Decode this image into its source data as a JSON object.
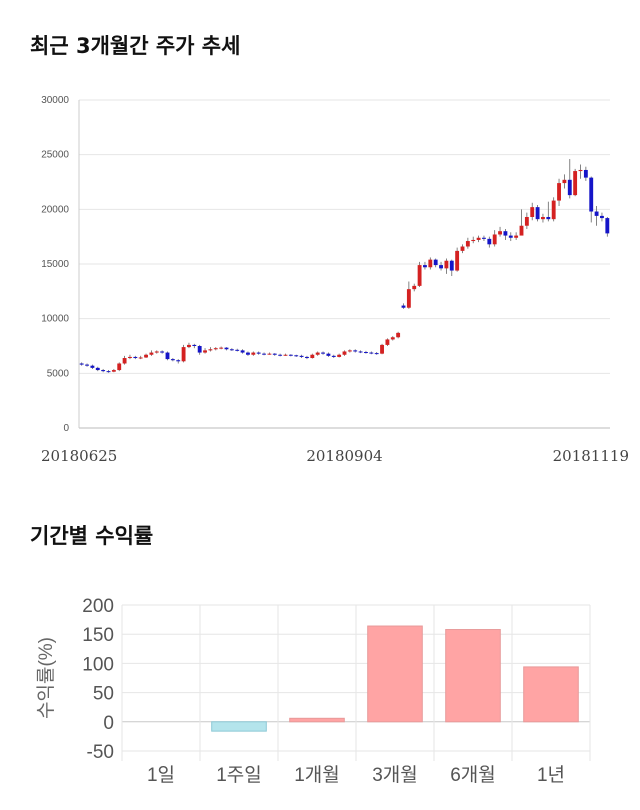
{
  "sections": {
    "price_title": "최근 3개월간 주가 추세",
    "return_title": "기간별 수익률"
  },
  "chart_data": [
    {
      "type": "candlestick",
      "title": "최근 3개월간 주가 추세",
      "ylim": [
        0,
        30000
      ],
      "y_ticks": [
        0,
        5000,
        10000,
        15000,
        20000,
        25000,
        30000
      ],
      "x_tick_labels": [
        "20180625",
        "20180904",
        "20181119"
      ],
      "x_tick_index": [
        0,
        49,
        99
      ],
      "grid": true,
      "colors": {
        "up": "#d42121",
        "down": "#1515c8",
        "wick": "#666666"
      },
      "candles": [
        [
          5900,
          5800,
          6000,
          5700
        ],
        [
          5800,
          5700,
          5900,
          5600
        ],
        [
          5700,
          5500,
          5800,
          5400
        ],
        [
          5500,
          5300,
          5600,
          5200
        ],
        [
          5300,
          5200,
          5400,
          5100
        ],
        [
          5200,
          5150,
          5300,
          5050
        ],
        [
          5150,
          5300,
          5400,
          5100
        ],
        [
          5300,
          5900,
          6000,
          5200
        ],
        [
          5900,
          6400,
          6600,
          5800
        ],
        [
          6400,
          6500,
          6700,
          6300
        ],
        [
          6500,
          6400,
          6600,
          6300
        ],
        [
          6400,
          6450,
          6600,
          6300
        ],
        [
          6450,
          6700,
          6800,
          6400
        ],
        [
          6700,
          6900,
          7100,
          6600
        ],
        [
          6900,
          7000,
          7100,
          6800
        ],
        [
          7000,
          6900,
          7100,
          6800
        ],
        [
          6900,
          6300,
          7000,
          6200
        ],
        [
          6300,
          6200,
          6400,
          6100
        ],
        [
          6200,
          6100,
          6300,
          5900
        ],
        [
          6100,
          7400,
          7600,
          6000
        ],
        [
          7400,
          7600,
          7800,
          7300
        ],
        [
          7600,
          7500,
          7700,
          7300
        ],
        [
          7500,
          6900,
          7600,
          6700
        ],
        [
          6900,
          7100,
          7300,
          6800
        ],
        [
          7100,
          7200,
          7400,
          7000
        ],
        [
          7200,
          7300,
          7400,
          7100
        ],
        [
          7300,
          7350,
          7450,
          7200
        ],
        [
          7350,
          7200,
          7400,
          7100
        ],
        [
          7200,
          7150,
          7300,
          7050
        ],
        [
          7150,
          7100,
          7250,
          7000
        ],
        [
          7100,
          6900,
          7200,
          6800
        ],
        [
          6900,
          6700,
          7000,
          6600
        ],
        [
          6700,
          6900,
          7000,
          6600
        ],
        [
          6900,
          6800,
          7000,
          6700
        ],
        [
          6800,
          6750,
          6900,
          6650
        ],
        [
          6750,
          6800,
          6900,
          6700
        ],
        [
          6800,
          6700,
          6850,
          6600
        ],
        [
          6700,
          6650,
          6800,
          6550
        ],
        [
          6650,
          6700,
          6800,
          6600
        ],
        [
          6700,
          6650,
          6750,
          6550
        ],
        [
          6650,
          6600,
          6700,
          6500
        ],
        [
          6600,
          6500,
          6700,
          6400
        ],
        [
          6500,
          6400,
          6600,
          6300
        ],
        [
          6400,
          6700,
          6800,
          6350
        ],
        [
          6700,
          6900,
          7000,
          6600
        ],
        [
          6900,
          6800,
          7000,
          6700
        ],
        [
          6800,
          6600,
          6900,
          6500
        ],
        [
          6600,
          6500,
          6700,
          6400
        ],
        [
          6500,
          6700,
          6800,
          6450
        ],
        [
          6700,
          7000,
          7100,
          6600
        ],
        [
          7000,
          7100,
          7200,
          6900
        ],
        [
          7100,
          7000,
          7200,
          6900
        ],
        [
          7000,
          6950,
          7100,
          6850
        ],
        [
          6950,
          6900,
          7050,
          6800
        ],
        [
          6900,
          6850,
          7000,
          6750
        ],
        [
          6850,
          6800,
          6950,
          6700
        ],
        [
          6800,
          7600,
          7700,
          6750
        ],
        [
          7600,
          8100,
          8200,
          7500
        ],
        [
          8100,
          8300,
          8400,
          8000
        ],
        [
          8300,
          8700,
          8800,
          8200
        ],
        [
          11200,
          11000,
          11400,
          10900
        ],
        [
          11000,
          12700,
          13400,
          10900
        ],
        [
          12700,
          13000,
          13200,
          12500
        ],
        [
          13000,
          14900,
          15200,
          12900
        ],
        [
          14900,
          14700,
          15200,
          14500
        ],
        [
          14700,
          15400,
          15600,
          14500
        ],
        [
          15400,
          14900,
          15500,
          14700
        ],
        [
          14900,
          14600,
          15200,
          14400
        ],
        [
          14600,
          15300,
          15500,
          14100
        ],
        [
          15300,
          14400,
          15400,
          13900
        ],
        [
          14400,
          16200,
          16500,
          14300
        ],
        [
          16200,
          16600,
          16800,
          16000
        ],
        [
          16600,
          17100,
          17400,
          16400
        ],
        [
          17100,
          17200,
          17500,
          16900
        ],
        [
          17200,
          17400,
          17600,
          17000
        ],
        [
          17400,
          17300,
          17600,
          17100
        ],
        [
          17300,
          16800,
          17500,
          16500
        ],
        [
          16800,
          17700,
          18100,
          16600
        ],
        [
          17700,
          18000,
          18400,
          17500
        ],
        [
          18000,
          17600,
          18200,
          17200
        ],
        [
          17600,
          17400,
          17900,
          17100
        ],
        [
          17400,
          17600,
          17900,
          17200
        ],
        [
          17600,
          18500,
          20000,
          18300
        ],
        [
          18500,
          19300,
          19700,
          18200
        ],
        [
          19300,
          20200,
          20600,
          19000
        ],
        [
          20200,
          19100,
          20400,
          18900
        ],
        [
          19100,
          19300,
          19600,
          18800
        ],
        [
          19300,
          19100,
          20700,
          18900
        ],
        [
          19100,
          20800,
          21100,
          18900
        ],
        [
          20800,
          22400,
          22800,
          20300
        ],
        [
          22400,
          22700,
          23200,
          21900
        ],
        [
          22700,
          21300,
          24600,
          21000
        ],
        [
          21300,
          23500,
          23700,
          21200
        ],
        [
          23500,
          23600,
          24100,
          22800
        ],
        [
          23600,
          22900,
          23900,
          22600
        ],
        [
          22900,
          19800,
          23000,
          18800
        ],
        [
          19800,
          19400,
          20300,
          18500
        ],
        [
          19400,
          19200,
          19700,
          18900
        ],
        [
          19200,
          17800,
          19300,
          17500
        ]
      ]
    },
    {
      "type": "bar",
      "title": "기간별 수익률",
      "categories": [
        "1일",
        "1주일",
        "1개월",
        "3개월",
        "6개월",
        "1년"
      ],
      "values": [
        0,
        -16,
        6,
        164,
        158,
        94
      ],
      "ylabel": "수익률(%)",
      "ylim": [
        -50,
        200
      ],
      "y_ticks": [
        -50,
        0,
        50,
        100,
        150,
        200
      ],
      "colors": {
        "positive_fill": "#ffa4a4",
        "positive_stroke": "#e79999",
        "negative_fill": "#b4e4ec",
        "negative_stroke": "#8cc8d6"
      }
    }
  ]
}
